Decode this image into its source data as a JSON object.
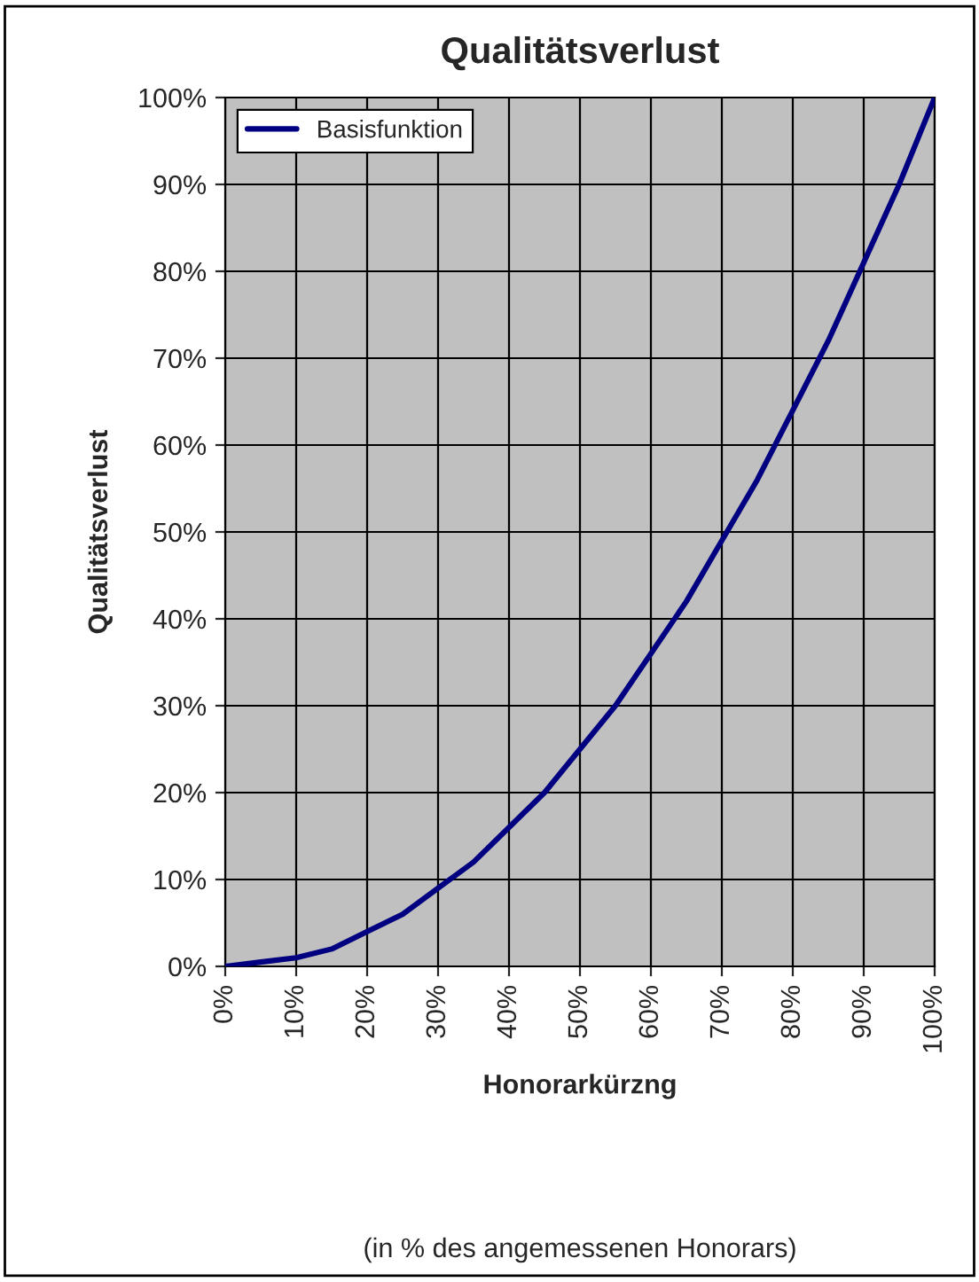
{
  "chart_data": {
    "type": "line",
    "title": "Qualitätsverlust",
    "xlabel": "Honorarkürzng",
    "ylabel": "Qualitätsverlust",
    "annotations": [
      "(in % des angemessenen Honorars)"
    ],
    "x": [
      0,
      5,
      10,
      15,
      20,
      25,
      30,
      35,
      40,
      45,
      50,
      55,
      60,
      65,
      70,
      75,
      80,
      85,
      90,
      95,
      100
    ],
    "series": [
      {
        "name": "Basisfunktion",
        "color": "#000080",
        "values": [
          0,
          0.5,
          1,
          2,
          4,
          6,
          9,
          12,
          16,
          20,
          25,
          30,
          36,
          42,
          49,
          56,
          64,
          72,
          81,
          90,
          100
        ]
      }
    ],
    "xlim": [
      0,
      100
    ],
    "ylim": [
      0,
      100
    ],
    "xticks": [
      {
        "value": 0,
        "label": "0%"
      },
      {
        "value": 10,
        "label": "10%"
      },
      {
        "value": 20,
        "label": "20%"
      },
      {
        "value": 30,
        "label": "30%"
      },
      {
        "value": 40,
        "label": "40%"
      },
      {
        "value": 50,
        "label": "50%"
      },
      {
        "value": 60,
        "label": "60%"
      },
      {
        "value": 70,
        "label": "70%"
      },
      {
        "value": 80,
        "label": "80%"
      },
      {
        "value": 90,
        "label": "90%"
      },
      {
        "value": 100,
        "label": "100%"
      }
    ],
    "yticks": [
      {
        "value": 0,
        "label": "0%"
      },
      {
        "value": 10,
        "label": "10%"
      },
      {
        "value": 20,
        "label": "20%"
      },
      {
        "value": 30,
        "label": "30%"
      },
      {
        "value": 40,
        "label": "40%"
      },
      {
        "value": 50,
        "label": "50%"
      },
      {
        "value": 60,
        "label": "60%"
      },
      {
        "value": 70,
        "label": "70%"
      },
      {
        "value": 80,
        "label": "80%"
      },
      {
        "value": 90,
        "label": "90%"
      },
      {
        "value": 100,
        "label": "100%"
      }
    ],
    "grid": true,
    "legend": "top left",
    "marker": "none",
    "line_style": "solid"
  }
}
